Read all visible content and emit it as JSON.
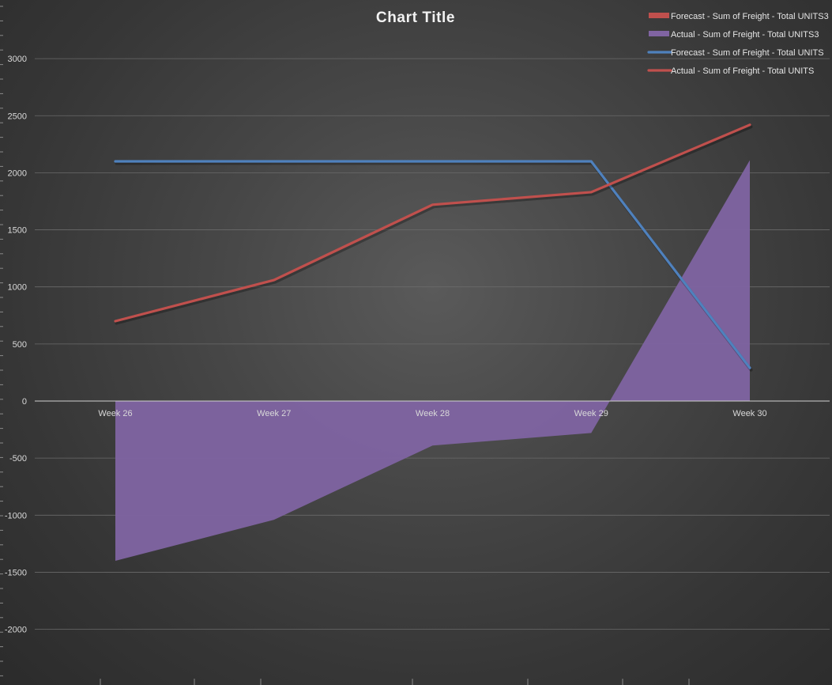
{
  "chart_data": {
    "title": "Chart Title",
    "x_axis": {
      "categories": [
        "Week 26",
        "Week 27",
        "Week 28",
        "Week 29",
        "Week 30"
      ]
    },
    "y_axis": {
      "ticks": [
        "3000",
        "2500",
        "2000",
        "1500",
        "1000",
        "500",
        "0",
        "-500",
        "-1000",
        "-1500",
        "-2000"
      ],
      "min": -2400,
      "max": 3000,
      "gridlines": true
    },
    "legend_position": "top-right",
    "series": [
      {
        "name": "Forecast - Sum of Freight - Total UNITS3",
        "type": "bar",
        "color": "#c0504d",
        "values": [
          null,
          null,
          null,
          null,
          null
        ]
      },
      {
        "name": "Actual - Sum of Freight - Total UNITS3",
        "type": "area",
        "color": "#8064a2",
        "values": [
          -1400,
          -1040,
          -390,
          -280,
          2110
        ]
      },
      {
        "name": "Forecast - Sum of Freight - Total UNITS",
        "type": "line",
        "color": "#4f81bd",
        "values": [
          2100,
          2100,
          2100,
          2100,
          290
        ]
      },
      {
        "name": "Actual - Sum of Freight - Total UNITS",
        "type": "line",
        "color": "#c0504d",
        "values": [
          700,
          1060,
          1720,
          1830,
          2420
        ]
      }
    ]
  }
}
